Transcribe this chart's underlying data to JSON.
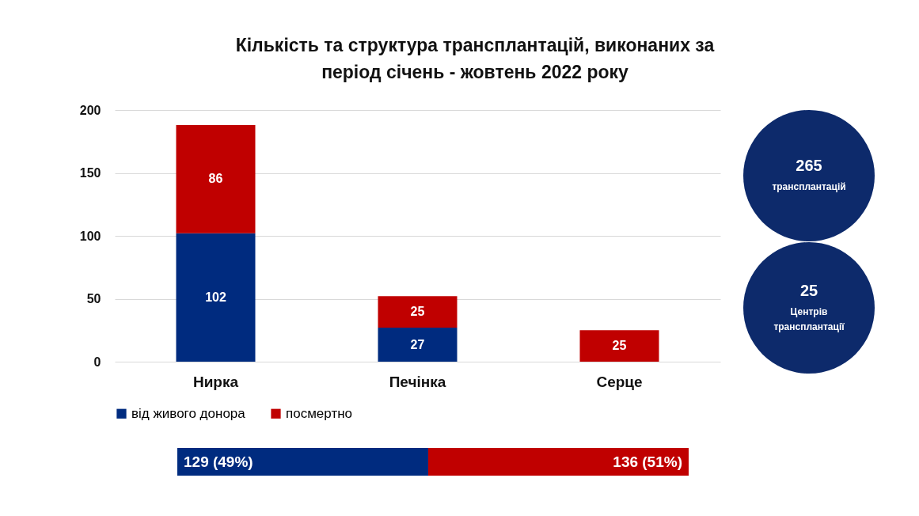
{
  "chart_data": {
    "type": "bar",
    "title": "Кількість та структура трансплантацій, виконаних за період  січень - жовтень 2022 року",
    "categories": [
      "Нирка",
      "Печінка",
      "Серце"
    ],
    "series": [
      {
        "name": "від живого донора",
        "color": "#002b7f",
        "values": [
          102,
          27,
          null
        ]
      },
      {
        "name": "посмертно",
        "color": "#c00000",
        "values": [
          86,
          25,
          25
        ]
      }
    ],
    "stacked": true,
    "data_labels": true,
    "ylim": [
      0,
      200
    ],
    "yticks": [
      0,
      50,
      100,
      150,
      200
    ],
    "grid": "y",
    "legend": "bottom",
    "annotations": [
      "265",
      "трансплантацій",
      "25",
      "Центрів трансплантації",
      "129 (49%)",
      "136 (51%)"
    ]
  }
}
